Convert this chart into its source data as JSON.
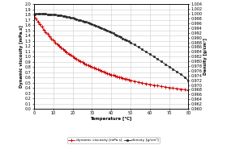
{
  "temperature": [
    0,
    1,
    2,
    3,
    4,
    5,
    6,
    7,
    8,
    9,
    10,
    11,
    12,
    13,
    14,
    15,
    16,
    17,
    18,
    19,
    20,
    21,
    22,
    23,
    24,
    25,
    26,
    27,
    28,
    29,
    30,
    31,
    32,
    33,
    34,
    35,
    36,
    37,
    38,
    39,
    40,
    41,
    42,
    43,
    44,
    45,
    46,
    47,
    48,
    49,
    50,
    52,
    54,
    56,
    58,
    60,
    62,
    64,
    66,
    68,
    70,
    72,
    74,
    76,
    78,
    80
  ],
  "viscosity": [
    1.787,
    1.728,
    1.671,
    1.618,
    1.567,
    1.519,
    1.472,
    1.428,
    1.386,
    1.346,
    1.307,
    1.271,
    1.235,
    1.202,
    1.169,
    1.139,
    1.109,
    1.081,
    1.053,
    1.027,
    1.002,
    0.978,
    0.955,
    0.932,
    0.911,
    0.89,
    0.87,
    0.851,
    0.833,
    0.815,
    0.798,
    0.781,
    0.765,
    0.749,
    0.734,
    0.719,
    0.705,
    0.692,
    0.678,
    0.666,
    0.653,
    0.641,
    0.63,
    0.618,
    0.607,
    0.597,
    0.586,
    0.576,
    0.566,
    0.557,
    0.547,
    0.528,
    0.511,
    0.496,
    0.481,
    0.467,
    0.454,
    0.441,
    0.429,
    0.417,
    0.406,
    0.396,
    0.386,
    0.376,
    0.367,
    0.354
  ],
  "density": [
    0.9998,
    0.9999,
    0.9999,
    1.0,
    1.0,
    0.9999,
    0.9999,
    0.9998,
    0.9997,
    0.9996,
    0.9997,
    0.9996,
    0.9995,
    0.9994,
    0.9993,
    0.9991,
    0.9989,
    0.9988,
    0.9986,
    0.9984,
    0.9982,
    0.998,
    0.9978,
    0.9975,
    0.9973,
    0.997,
    0.9968,
    0.9965,
    0.9962,
    0.9959,
    0.9956,
    0.9953,
    0.995,
    0.9947,
    0.9944,
    0.994,
    0.9937,
    0.9933,
    0.993,
    0.9926,
    0.9922,
    0.9918,
    0.9914,
    0.991,
    0.9906,
    0.9902,
    0.9897,
    0.9893,
    0.9888,
    0.9884,
    0.9879,
    0.987,
    0.986,
    0.985,
    0.984,
    0.983,
    0.982,
    0.9809,
    0.9799,
    0.9788,
    0.9778,
    0.9767,
    0.9756,
    0.9745,
    0.9734,
    0.9718
  ],
  "viscosity_color": "#cc0000",
  "density_color": "#222222",
  "xlabel": "Temperature [°C]",
  "ylabel_left": "Dynamic viscosity [mPa.s]",
  "ylabel_right": "Density [g/cm³]",
  "legend_viscosity": "dynamic viscosity [mPa.s]",
  "legend_density": "density [g/cm³]",
  "xlim": [
    0,
    80
  ],
  "ylim_left": [
    0.0,
    2.0
  ],
  "ylim_right": [
    0.96,
    1.004
  ],
  "xticks": [
    0,
    10,
    20,
    30,
    40,
    50,
    60,
    70,
    80
  ],
  "yticks_left": [
    0.0,
    0.1,
    0.2,
    0.3,
    0.4,
    0.5,
    0.6,
    0.7,
    0.8,
    0.9,
    1.0,
    1.1,
    1.2,
    1.3,
    1.4,
    1.5,
    1.6,
    1.7,
    1.8,
    1.9,
    2.0
  ],
  "yticks_right": [
    0.96,
    0.962,
    0.964,
    0.966,
    0.968,
    0.97,
    0.972,
    0.974,
    0.976,
    0.978,
    0.98,
    0.982,
    0.984,
    0.986,
    0.988,
    0.99,
    0.992,
    0.994,
    0.996,
    0.998,
    1.0,
    1.002,
    1.004
  ],
  "grid_color": "#cccccc",
  "background_color": "#ffffff",
  "tick_fontsize": 3.5,
  "label_fontsize": 3.8,
  "legend_fontsize": 3.2,
  "line_width": 0.6,
  "marker_size_visc": 2.2,
  "marker_size_dens": 1.8
}
